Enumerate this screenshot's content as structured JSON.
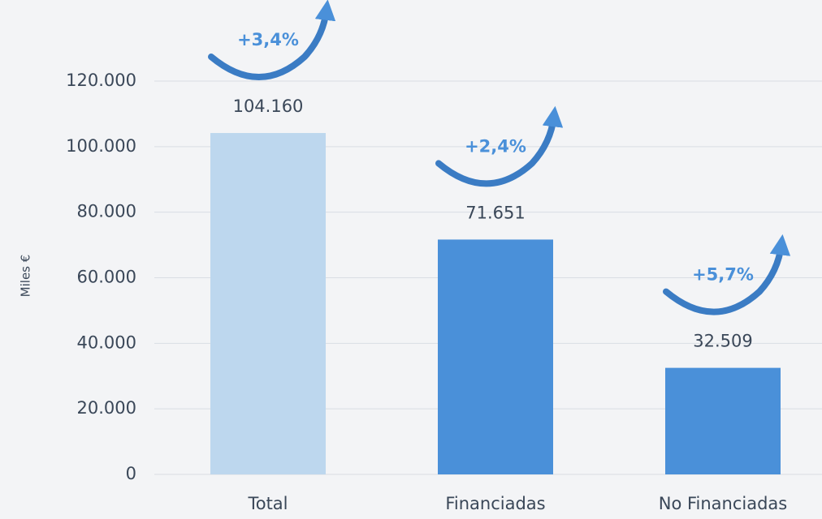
{
  "chart_data": {
    "type": "bar",
    "y_axis_label": "Miles €",
    "categories": [
      "Total",
      "Financiadas",
      "No Financiadas"
    ],
    "values": [
      104160,
      71651,
      32509
    ],
    "value_labels": [
      "104.160",
      "71.651",
      "32.509"
    ],
    "colors": [
      "#bdd7ee",
      "#4a90d9",
      "#4a90d9"
    ],
    "annotations": [
      "+3,4%",
      "+2,4%",
      "+5,7%"
    ],
    "ylim": [
      0,
      120000
    ],
    "yticks": [
      0,
      {
        "value": 20000,
        "label": "20.000"
      },
      {
        "value": 40000,
        "label": "40.000"
      },
      {
        "value": 60000,
        "label": "60.000"
      },
      {
        "value": 80000,
        "label": "80.000"
      },
      {
        "value": 100000,
        "label": "100.000"
      },
      {
        "value": 120000,
        "label": "120.000"
      }
    ],
    "grid": true
  }
}
